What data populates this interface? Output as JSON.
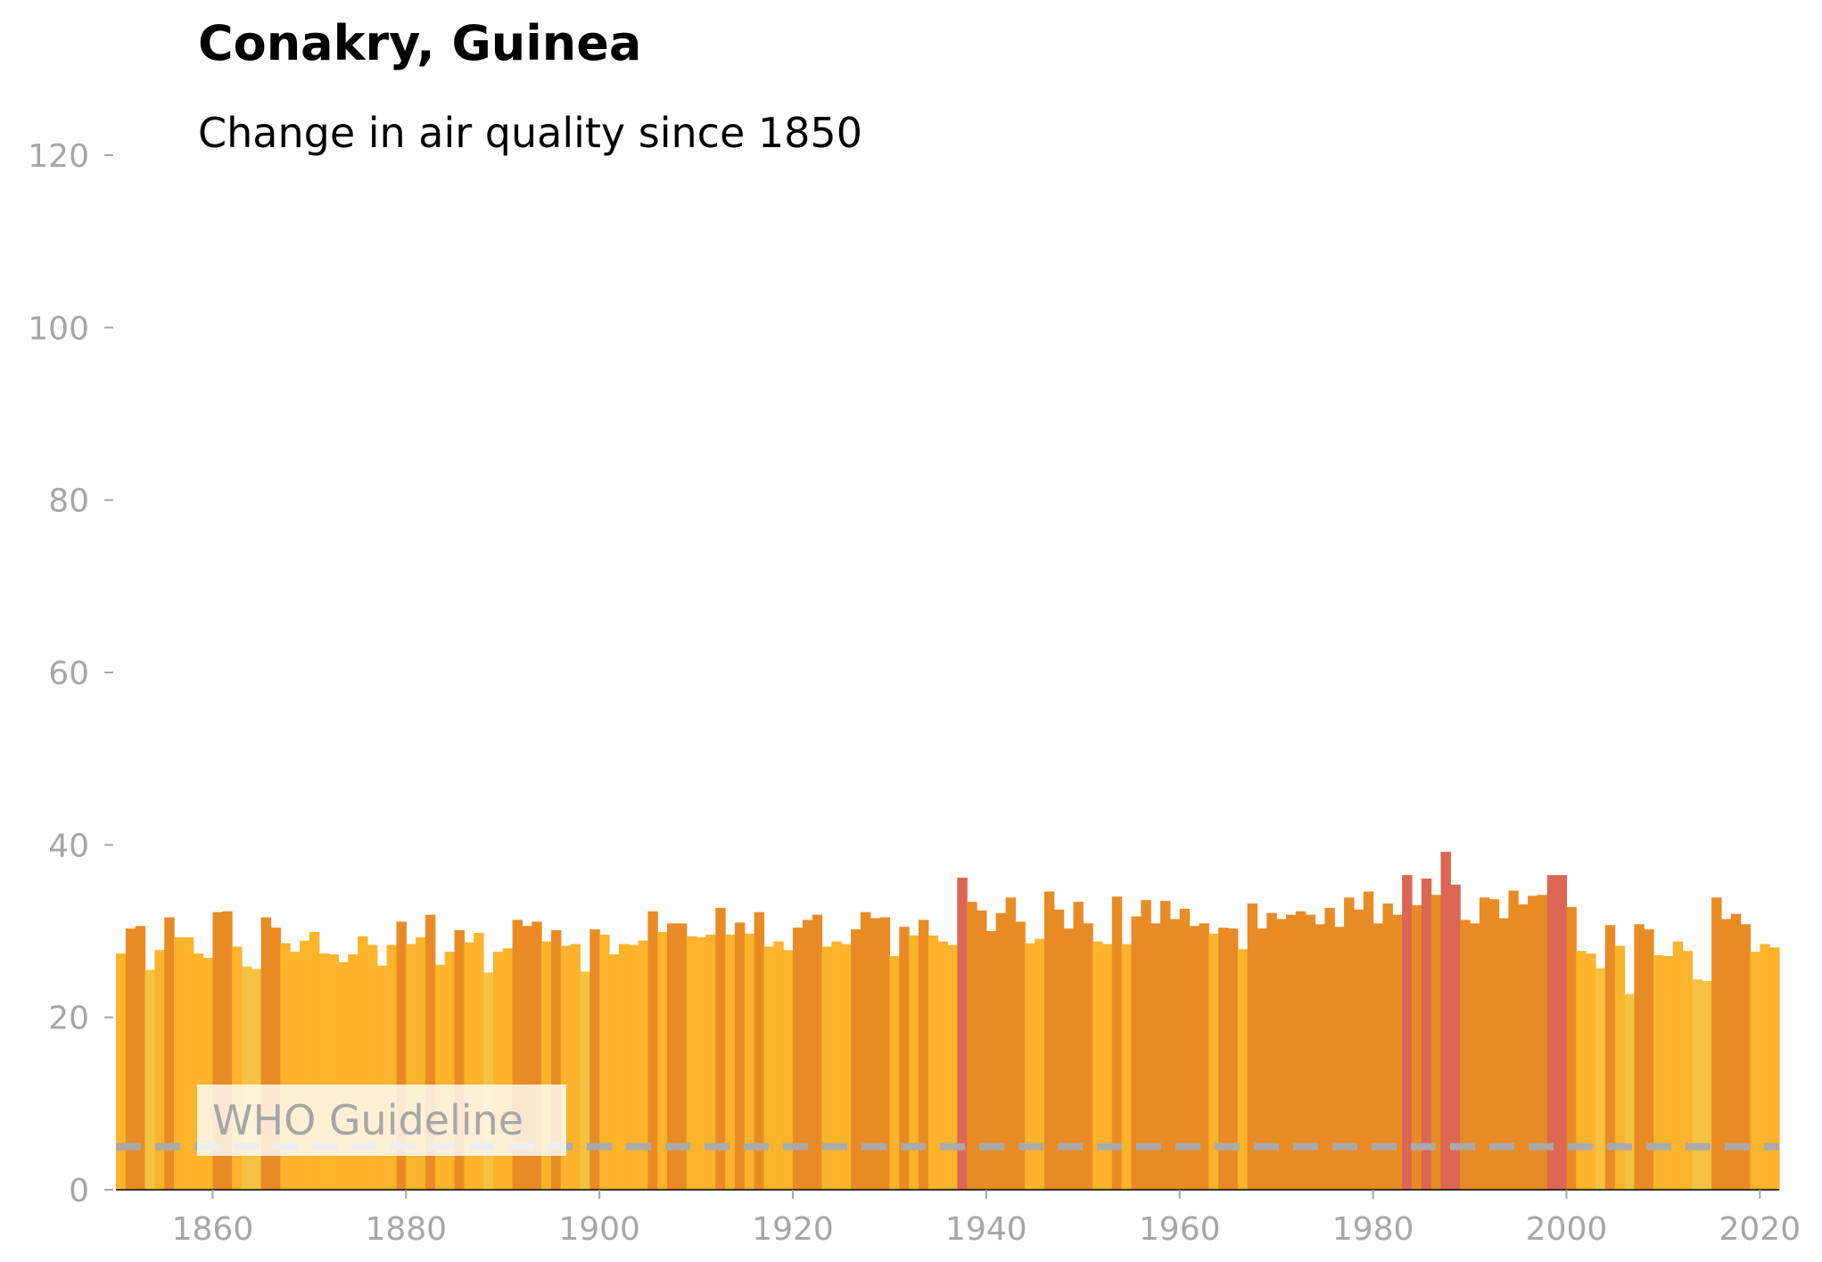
{
  "chart_data": {
    "type": "bar",
    "title": "Conakry, Guinea",
    "subtitle": "Change in air quality since 1850",
    "xlabel": "",
    "ylabel": "",
    "xlim": [
      1850,
      2022
    ],
    "ylim": [
      0,
      120
    ],
    "x_ticks": [
      1860,
      1880,
      1900,
      1920,
      1940,
      1960,
      1980,
      2000,
      2020
    ],
    "y_ticks": [
      0,
      20,
      40,
      60,
      80,
      100,
      120
    ],
    "guideline": {
      "label": "WHO Guideline",
      "value": 5,
      "color": "#aaaaaa"
    },
    "colors": {
      "very_light": "#f5c242",
      "light": "#fbb42b",
      "medium": "#e98b25",
      "high": "#dc6654",
      "axis_text": "#a6a6a6"
    },
    "years": [
      1850,
      1851,
      1852,
      1853,
      1854,
      1855,
      1856,
      1857,
      1858,
      1859,
      1860,
      1861,
      1862,
      1863,
      1864,
      1865,
      1866,
      1867,
      1868,
      1869,
      1870,
      1871,
      1872,
      1873,
      1874,
      1875,
      1876,
      1877,
      1878,
      1879,
      1880,
      1881,
      1882,
      1883,
      1884,
      1885,
      1886,
      1887,
      1888,
      1889,
      1890,
      1891,
      1892,
      1893,
      1894,
      1895,
      1896,
      1897,
      1898,
      1899,
      1900,
      1901,
      1902,
      1903,
      1904,
      1905,
      1906,
      1907,
      1908,
      1909,
      1910,
      1911,
      1912,
      1913,
      1914,
      1915,
      1916,
      1917,
      1918,
      1919,
      1920,
      1921,
      1922,
      1923,
      1924,
      1925,
      1926,
      1927,
      1928,
      1929,
      1930,
      1931,
      1932,
      1933,
      1934,
      1935,
      1936,
      1937,
      1938,
      1939,
      1940,
      1941,
      1942,
      1943,
      1944,
      1945,
      1946,
      1947,
      1948,
      1949,
      1950,
      1951,
      1952,
      1953,
      1954,
      1955,
      1956,
      1957,
      1958,
      1959,
      1960,
      1961,
      1962,
      1963,
      1964,
      1965,
      1966,
      1967,
      1968,
      1969,
      1970,
      1971,
      1972,
      1973,
      1974,
      1975,
      1976,
      1977,
      1978,
      1979,
      1980,
      1981,
      1982,
      1983,
      1984,
      1985,
      1986,
      1987,
      1988,
      1989,
      1990,
      1991,
      1992,
      1993,
      1994,
      1995,
      1996,
      1997,
      1998,
      1999,
      2000,
      2001,
      2002,
      2003,
      2004,
      2005,
      2006,
      2007,
      2008,
      2009,
      2010,
      2011,
      2012,
      2013,
      2014,
      2015,
      2016,
      2017,
      2018,
      2019,
      2020,
      2021
    ],
    "values": [
      27.4,
      30.3,
      30.6,
      25.5,
      27.8,
      31.6,
      29.3,
      29.3,
      27.4,
      26.9,
      32.2,
      32.3,
      28.2,
      25.9,
      25.6,
      31.6,
      30.4,
      28.6,
      27.6,
      28.9,
      29.9,
      27.4,
      27.3,
      26.4,
      27.3,
      29.4,
      28.4,
      26.0,
      28.4,
      31.1,
      28.5,
      29.3,
      31.9,
      26.1,
      27.6,
      30.1,
      28.7,
      29.8,
      25.2,
      27.6,
      28.0,
      31.3,
      30.6,
      31.1,
      28.8,
      30.1,
      28.3,
      28.5,
      25.3,
      30.2,
      29.6,
      27.3,
      28.5,
      28.4,
      28.9,
      32.3,
      29.9,
      30.9,
      30.9,
      29.4,
      29.3,
      29.6,
      32.7,
      29.6,
      31.0,
      29.7,
      32.2,
      28.2,
      28.8,
      27.8,
      30.4,
      31.3,
      31.9,
      28.2,
      28.8,
      28.5,
      30.2,
      32.2,
      31.5,
      31.6,
      27.1,
      30.5,
      29.5,
      31.3,
      29.5,
      28.8,
      28.4,
      36.2,
      33.4,
      32.4,
      30.0,
      32.1,
      33.9,
      31.1,
      28.6,
      29.1,
      34.6,
      32.5,
      30.3,
      33.4,
      30.9,
      28.8,
      28.5,
      34.0,
      28.5,
      31.7,
      33.6,
      30.9,
      33.5,
      31.4,
      32.6,
      30.6,
      30.9,
      29.7,
      30.4,
      30.3,
      27.9,
      33.2,
      30.3,
      32.1,
      31.4,
      31.9,
      32.3,
      31.9,
      30.8,
      32.7,
      30.5,
      33.9,
      32.5,
      34.6,
      30.9,
      33.2,
      31.9,
      36.5,
      33.0,
      36.1,
      34.2,
      39.2,
      35.4,
      31.3,
      30.9,
      33.9,
      33.7,
      31.5,
      34.7,
      33.1,
      34.1,
      34.2,
      36.5,
      36.5,
      32.8,
      27.7,
      27.4,
      25.7,
      30.7,
      28.3,
      22.7,
      30.8,
      30.2,
      27.2,
      27.1,
      28.8,
      27.7,
      24.4,
      24.2,
      33.9,
      31.4,
      32.0,
      30.8,
      27.6,
      28.5,
      28.1
    ]
  }
}
